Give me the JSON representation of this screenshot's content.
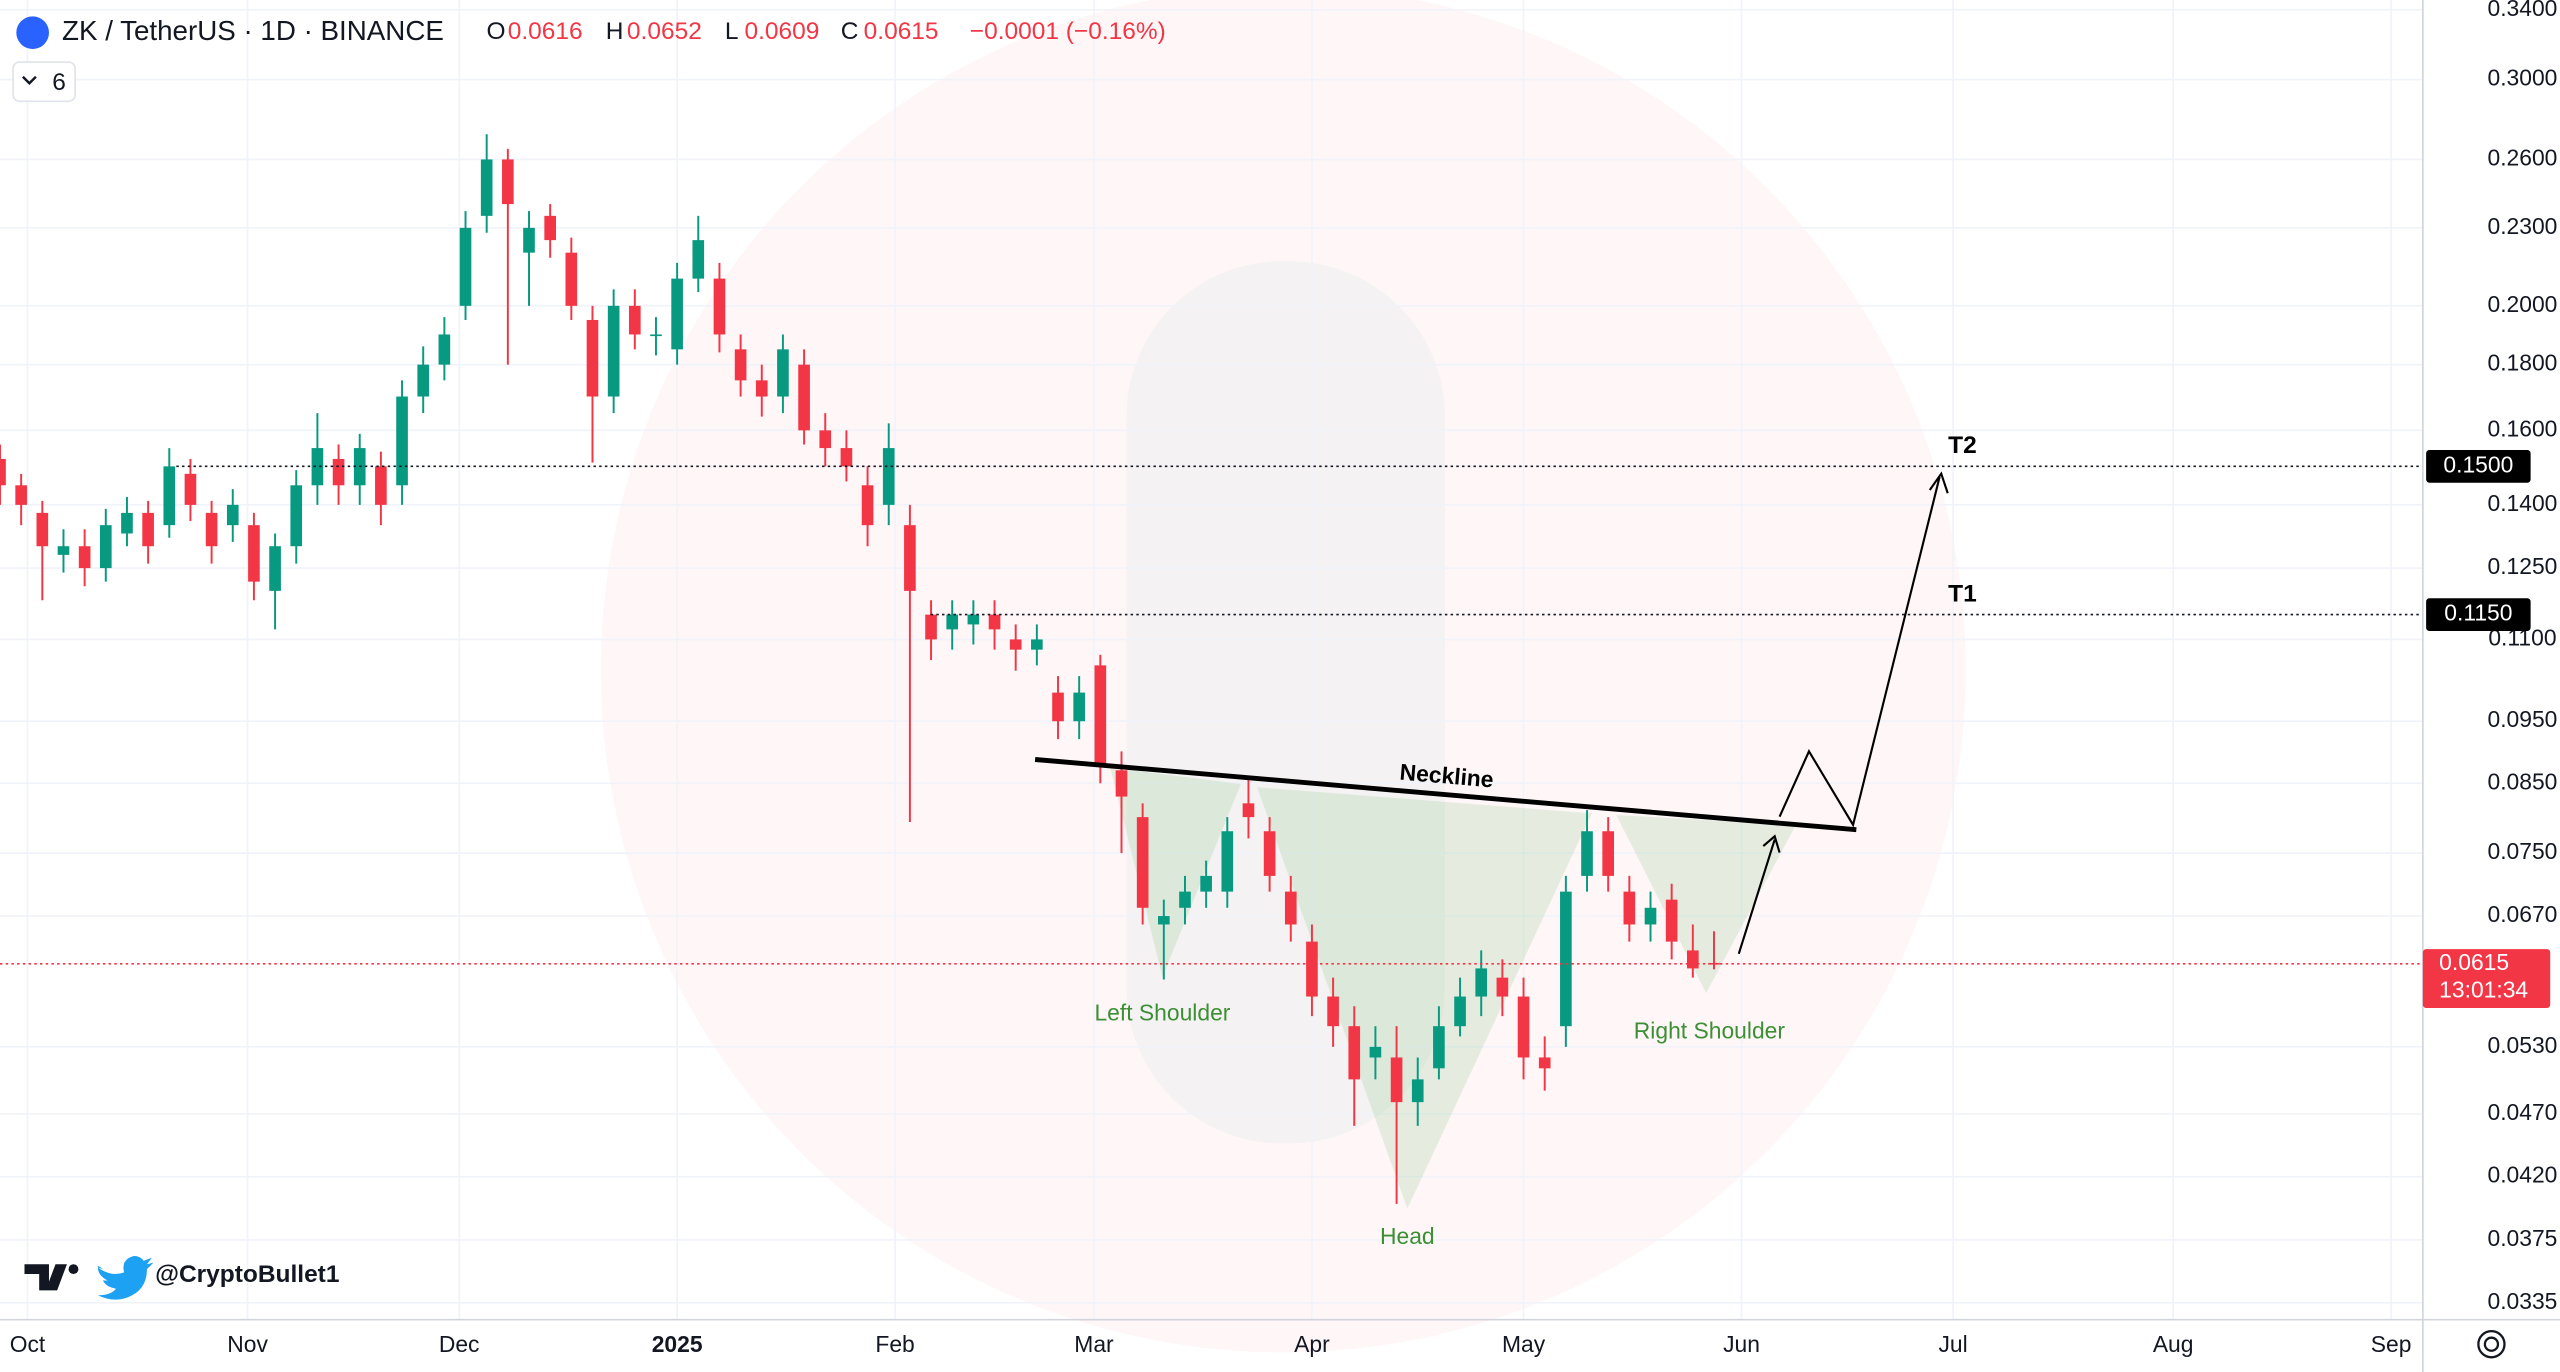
{
  "chart_data": {
    "type": "candlestick",
    "symbol": "ZK / TetherUS · 1D · BINANCE",
    "ohlc_labels": [
      "O",
      "H",
      "L",
      "C"
    ],
    "change": "−0.0001 (−0.16%)",
    "indicators_count": 6,
    "up_color": "#089981",
    "down_color": "#f23645",
    "log_scale": true,
    "grid": true,
    "open": [
      0.152,
      0.145,
      0.138,
      0.128,
      0.13,
      0.125,
      0.133,
      0.138,
      0.135,
      0.148,
      0.138,
      0.135,
      0.135,
      0.12,
      0.13,
      0.145,
      0.152,
      0.145,
      0.15,
      0.145,
      0.17,
      0.18,
      0.2,
      0.235,
      0.26,
      0.22,
      0.235,
      0.22,
      0.195,
      0.17,
      0.2,
      0.19,
      0.185,
      0.21,
      0.21,
      0.185,
      0.175,
      0.17,
      0.18,
      0.16,
      0.155,
      0.145,
      0.14,
      0.135,
      0.115,
      0.112,
      0.113,
      0.115,
      0.11,
      0.108,
      0.1,
      0.095,
      0.105,
      0.087,
      0.08,
      0.066,
      0.068,
      0.07,
      0.07,
      0.082,
      0.078,
      0.07,
      0.064,
      0.058,
      0.055,
      0.052,
      0.052,
      0.048,
      0.051,
      0.055,
      0.058,
      0.06,
      0.058,
      0.052,
      0.055,
      0.072,
      0.078,
      0.07,
      0.066,
      0.069,
      0.063,
      0.0616
    ],
    "high": [
      0.156,
      0.148,
      0.141,
      0.134,
      0.134,
      0.139,
      0.142,
      0.141,
      0.155,
      0.152,
      0.141,
      0.144,
      0.138,
      0.133,
      0.149,
      0.165,
      0.156,
      0.159,
      0.154,
      0.175,
      0.186,
      0.196,
      0.237,
      0.272,
      0.265,
      0.237,
      0.24,
      0.226,
      0.2,
      0.206,
      0.206,
      0.196,
      0.216,
      0.235,
      0.216,
      0.19,
      0.18,
      0.19,
      0.185,
      0.165,
      0.16,
      0.15,
      0.162,
      0.14,
      0.118,
      0.118,
      0.118,
      0.118,
      0.113,
      0.113,
      0.103,
      0.103,
      0.107,
      0.09,
      0.082,
      0.069,
      0.072,
      0.074,
      0.08,
      0.086,
      0.08,
      0.072,
      0.066,
      0.06,
      0.057,
      0.055,
      0.055,
      0.052,
      0.057,
      0.06,
      0.063,
      0.062,
      0.06,
      0.054,
      0.072,
      0.081,
      0.08,
      0.072,
      0.07,
      0.071,
      0.066,
      0.0652
    ],
    "low": [
      0.14,
      0.135,
      0.118,
      0.124,
      0.121,
      0.122,
      0.13,
      0.126,
      0.132,
      0.136,
      0.126,
      0.131,
      0.118,
      0.112,
      0.126,
      0.14,
      0.14,
      0.14,
      0.135,
      0.14,
      0.165,
      0.175,
      0.195,
      0.228,
      0.18,
      0.2,
      0.218,
      0.195,
      0.151,
      0.165,
      0.185,
      0.183,
      0.18,
      0.205,
      0.184,
      0.17,
      0.164,
      0.165,
      0.156,
      0.15,
      0.146,
      0.13,
      0.135,
      0.0793,
      0.106,
      0.108,
      0.109,
      0.108,
      0.104,
      0.105,
      0.092,
      0.092,
      0.085,
      0.075,
      0.066,
      0.0598,
      0.066,
      0.068,
      0.068,
      0.077,
      0.07,
      0.064,
      0.056,
      0.053,
      0.046,
      0.05,
      0.04,
      0.046,
      0.05,
      0.054,
      0.056,
      0.056,
      0.05,
      0.049,
      0.053,
      0.07,
      0.07,
      0.064,
      0.064,
      0.062,
      0.06,
      0.0609
    ],
    "close": [
      0.145,
      0.14,
      0.13,
      0.13,
      0.125,
      0.135,
      0.138,
      0.13,
      0.15,
      0.14,
      0.13,
      0.14,
      0.122,
      0.13,
      0.145,
      0.155,
      0.145,
      0.155,
      0.14,
      0.17,
      0.18,
      0.19,
      0.23,
      0.26,
      0.24,
      0.23,
      0.225,
      0.2,
      0.17,
      0.2,
      0.19,
      0.19,
      0.21,
      0.225,
      0.19,
      0.175,
      0.17,
      0.185,
      0.16,
      0.155,
      0.15,
      0.135,
      0.155,
      0.12,
      0.11,
      0.115,
      0.115,
      0.112,
      0.108,
      0.11,
      0.095,
      0.1,
      0.088,
      0.083,
      0.068,
      0.067,
      0.07,
      0.072,
      0.078,
      0.08,
      0.072,
      0.066,
      0.058,
      0.055,
      0.05,
      0.053,
      0.048,
      0.05,
      0.055,
      0.058,
      0.061,
      0.058,
      0.052,
      0.051,
      0.07,
      0.078,
      0.072,
      0.066,
      0.068,
      0.064,
      0.061,
      0.0615
    ],
    "xlim": [
      0,
      114.5
    ],
    "xticks": [
      {
        "value": 1.3,
        "label": "Oct"
      },
      {
        "value": 11.7,
        "label": "Nov"
      },
      {
        "value": 21.7,
        "label": "Dec"
      },
      {
        "value": 32,
        "label": "2025"
      },
      {
        "value": 42.3,
        "label": "Feb"
      },
      {
        "value": 51.7,
        "label": "Mar"
      },
      {
        "value": 62,
        "label": "Apr"
      },
      {
        "value": 72,
        "label": "May"
      },
      {
        "value": 82.3,
        "label": "Jun"
      },
      {
        "value": 92.3,
        "label": "Jul"
      },
      {
        "value": 102.7,
        "label": "Aug"
      },
      {
        "value": 113,
        "label": "Sep"
      }
    ],
    "ylim": [
      0.0325,
      0.346
    ],
    "yticks": [
      {
        "value": 0.34,
        "label": "0.3400"
      },
      {
        "value": 0.3,
        "label": "0.3000"
      },
      {
        "value": 0.26,
        "label": "0.2600"
      },
      {
        "value": 0.23,
        "label": "0.2300"
      },
      {
        "value": 0.2,
        "label": "0.2000"
      },
      {
        "value": 0.18,
        "label": "0.1800"
      },
      {
        "value": 0.16,
        "label": "0.1600"
      },
      {
        "value": 0.14,
        "label": "0.1400"
      },
      {
        "value": 0.125,
        "label": "0.1250"
      },
      {
        "value": 0.11,
        "label": "0.1100"
      },
      {
        "value": 0.095,
        "label": "0.0950"
      },
      {
        "value": 0.085,
        "label": "0.0850"
      },
      {
        "value": 0.075,
        "label": "0.0750"
      },
      {
        "value": 0.067,
        "label": "0.0670"
      },
      {
        "value": 0.053,
        "label": "0.0530"
      },
      {
        "value": 0.047,
        "label": "0.0470"
      },
      {
        "value": 0.042,
        "label": "0.0420"
      },
      {
        "value": 0.0375,
        "label": "0.0375"
      },
      {
        "value": 0.0335,
        "label": "0.0335"
      }
    ],
    "levels": [
      {
        "name": "T2",
        "value": 0.15,
        "label": "0.1500"
      },
      {
        "name": "T1",
        "value": 0.115,
        "label": "0.1150"
      }
    ],
    "countdown": "13:01:34",
    "annotations": {
      "neckline": "Neckline",
      "left_shoulder": "Left Shoulder",
      "head": "Head",
      "right_shoulder": "Right Shoulder"
    },
    "author": "@CryptoBullet1"
  }
}
